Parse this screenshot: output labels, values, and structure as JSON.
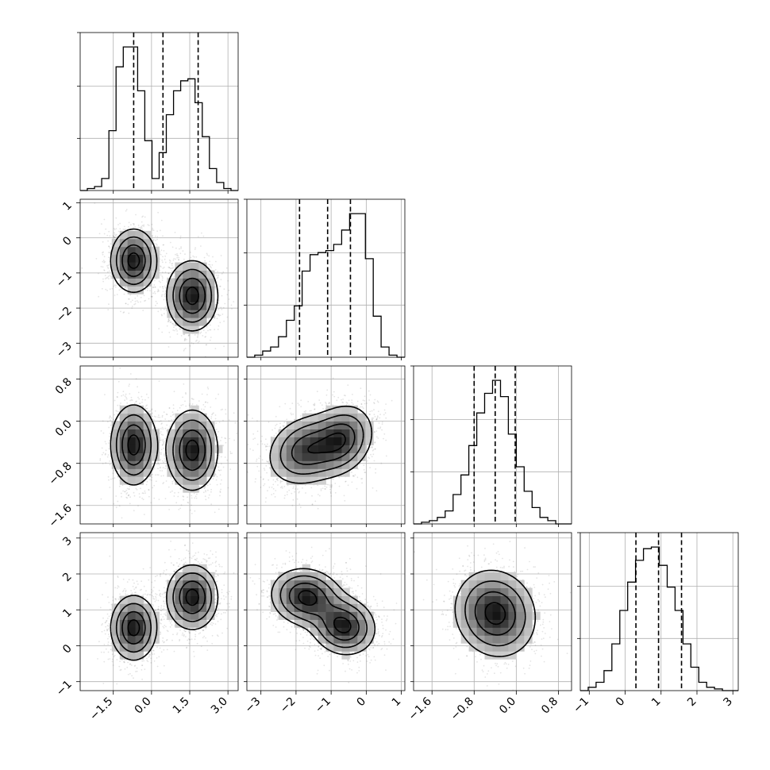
{
  "chart_data": {
    "type": "corner",
    "grid": true,
    "parameters": [
      {
        "range": [
          -2.8,
          3.4
        ],
        "ticks": [
          -1.5,
          0.0,
          1.5,
          3.0
        ],
        "tick_labels": [
          "−1.5",
          "0.0",
          "1.5",
          "3.0"
        ],
        "quantiles": [
          -0.7,
          0.45,
          1.83
        ],
        "modes": [
          {
            "mean": -0.7,
            "sd": 0.45,
            "weight": 0.5
          },
          {
            "mean": 1.6,
            "sd": 0.5,
            "weight": 0.5
          }
        ]
      },
      {
        "range": [
          -3.4,
          1.1
        ],
        "ticks": [
          -3,
          -2,
          -1,
          0,
          1
        ],
        "tick_labels": [
          "−3",
          "−2",
          "−1",
          "0",
          "1"
        ],
        "quantiles": [
          -1.9,
          -1.1,
          -0.45
        ],
        "modes": [
          {
            "mean": -0.65,
            "sd": 0.45,
            "weight": 0.5
          },
          {
            "mean": -1.65,
            "sd": 0.5,
            "weight": 0.5
          }
        ]
      },
      {
        "range": [
          -1.95,
          1.05
        ],
        "ticks": [
          -1.6,
          -0.8,
          0.0,
          0.8
        ],
        "tick_labels": [
          "−1.6",
          "−0.8",
          "0.0",
          "0.8"
        ],
        "quantiles": [
          -0.8,
          -0.4,
          -0.02
        ],
        "modes": [
          {
            "mean": -0.4,
            "sd": 0.38,
            "weight": 1.0
          }
        ]
      },
      {
        "range": [
          -1.25,
          3.15
        ],
        "ticks": [
          -1,
          0,
          1,
          2,
          3
        ],
        "tick_labels": [
          "−1",
          "0",
          "1",
          "2",
          "3"
        ],
        "quantiles": [
          0.3,
          0.93,
          1.57
        ],
        "modes": [
          {
            "mean": 0.5,
            "sd": 0.45,
            "weight": 0.5
          },
          {
            "mean": 1.35,
            "sd": 0.45,
            "weight": 0.5
          }
        ]
      }
    ],
    "histograms": [
      {
        "param": 0,
        "bin_edges_range": [
          -2.8,
          3.4
        ],
        "counts": [
          0,
          1,
          2,
          6,
          30,
          62,
          72,
          72,
          50,
          25,
          6,
          19,
          38,
          50,
          55,
          56,
          44,
          27,
          11,
          4,
          1,
          0
        ]
      },
      {
        "param": 1,
        "bin_edges_range": [
          -3.4,
          1.1
        ],
        "counts": [
          0,
          1,
          3,
          5,
          10,
          18,
          25,
          42,
          50,
          51,
          52,
          55,
          62,
          70,
          70,
          48,
          20,
          5,
          1,
          0
        ]
      },
      {
        "param": 2,
        "bin_edges_range": [
          -1.95,
          1.05
        ],
        "counts": [
          0,
          1,
          2,
          4,
          8,
          18,
          30,
          48,
          68,
          80,
          88,
          78,
          55,
          35,
          20,
          10,
          4,
          2,
          0,
          0
        ]
      },
      {
        "param": 3,
        "bin_edges_range": [
          -1.25,
          3.15
        ],
        "counts": [
          0,
          2,
          5,
          12,
          28,
          48,
          65,
          78,
          85,
          86,
          75,
          62,
          48,
          28,
          14,
          5,
          2,
          1,
          0,
          0
        ]
      }
    ],
    "two_d_panels": [
      {
        "x_param": 0,
        "y_param": 1,
        "correlation": 0.0,
        "components": [
          {
            "mx": -0.7,
            "my": -0.65,
            "sx": 0.45,
            "sy": 0.45
          },
          {
            "mx": 1.6,
            "my": -1.65,
            "sx": 0.5,
            "sy": 0.5
          }
        ]
      },
      {
        "x_param": 0,
        "y_param": 2,
        "correlation": 0.0,
        "components": [
          {
            "mx": -0.7,
            "my": -0.45,
            "sx": 0.45,
            "sy": 0.38
          },
          {
            "mx": 1.6,
            "my": -0.55,
            "sx": 0.5,
            "sy": 0.38
          }
        ]
      },
      {
        "x_param": 1,
        "y_param": 2,
        "correlation": 0.2,
        "components": [
          {
            "mx": -0.7,
            "my": -0.35,
            "sx": 0.45,
            "sy": 0.33
          },
          {
            "mx": -1.7,
            "my": -0.55,
            "sx": 0.55,
            "sy": 0.33
          }
        ]
      },
      {
        "x_param": 0,
        "y_param": 3,
        "correlation": 0.0,
        "components": [
          {
            "mx": -0.7,
            "my": 0.5,
            "sx": 0.45,
            "sy": 0.45
          },
          {
            "mx": 1.6,
            "my": 1.35,
            "sx": 0.5,
            "sy": 0.45
          }
        ]
      },
      {
        "x_param": 1,
        "y_param": 3,
        "correlation": -0.1,
        "components": [
          {
            "mx": -0.65,
            "my": 0.55,
            "sx": 0.45,
            "sy": 0.4
          },
          {
            "mx": -1.7,
            "my": 1.35,
            "sx": 0.5,
            "sy": 0.4
          }
        ]
      },
      {
        "x_param": 2,
        "y_param": 3,
        "correlation": -0.1,
        "components": [
          {
            "mx": -0.4,
            "my": 0.9,
            "sx": 0.38,
            "sy": 0.6
          }
        ]
      }
    ],
    "contour_levels_sigma": [
      0.5,
      1.0,
      1.5,
      2.0
    ],
    "colors": {
      "contour": "#000000",
      "scatter": "#555555",
      "density": "#000000",
      "grid": "#b0b0b0"
    }
  }
}
